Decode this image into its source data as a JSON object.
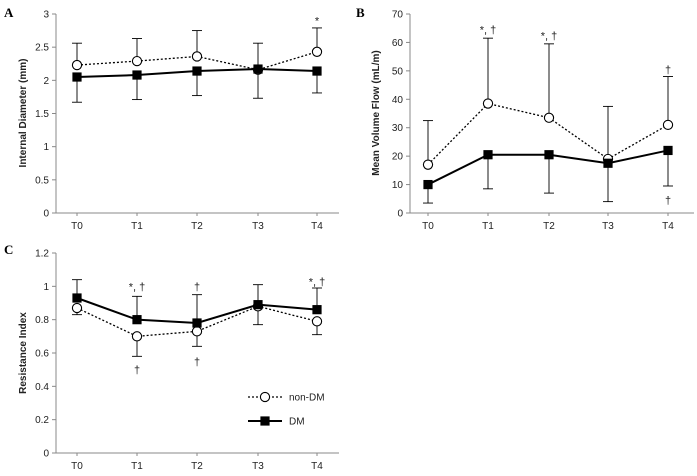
{
  "chart_data": [
    {
      "type": "line",
      "panel": "A",
      "ylabel": "Internal Diameter (mm)",
      "xlabel": "",
      "categories": [
        "T0",
        "T1",
        "T2",
        "T3",
        "T4"
      ],
      "ylim": [
        0,
        3
      ],
      "yticks": [
        0,
        0.5,
        1,
        1.5,
        2,
        2.5,
        3
      ],
      "ytick_labels": [
        "0",
        "0.5",
        "1",
        "1.5",
        "2",
        "2.5",
        "3"
      ],
      "series": [
        {
          "name": "non-DM",
          "style": "dotted-open-circle",
          "values": [
            2.23,
            2.29,
            2.36,
            2.16,
            2.43
          ],
          "err_low": [
            2.23,
            2.29,
            2.36,
            2.16,
            2.43
          ],
          "err_high": [
            2.56,
            2.63,
            2.75,
            2.56,
            2.79
          ]
        },
        {
          "name": "DM",
          "style": "solid-filled-square",
          "values": [
            2.05,
            2.08,
            2.14,
            2.17,
            2.14
          ],
          "err_low": [
            1.67,
            1.71,
            1.77,
            1.73,
            1.81
          ],
          "err_high": [
            2.05,
            2.08,
            2.14,
            2.17,
            2.14
          ]
        }
      ],
      "annotations": [
        {
          "text": "*",
          "category": "T4",
          "y": 2.9
        }
      ]
    },
    {
      "type": "line",
      "panel": "B",
      "ylabel": "Mean Volume Flow (mL/m)",
      "xlabel": "",
      "categories": [
        "T0",
        "T1",
        "T2",
        "T3",
        "T4"
      ],
      "ylim": [
        0,
        70
      ],
      "yticks": [
        0,
        10,
        20,
        30,
        40,
        50,
        60,
        70
      ],
      "ytick_labels": [
        "0",
        "10",
        "20",
        "30",
        "40",
        "50",
        "60",
        "70"
      ],
      "series": [
        {
          "name": "non-DM",
          "style": "dotted-open-circle",
          "values": [
            17,
            38.5,
            33.5,
            19,
            31
          ],
          "err_low": [
            17,
            38.5,
            33.5,
            19,
            31
          ],
          "err_high": [
            32.5,
            61.5,
            59.5,
            37.5,
            48
          ]
        },
        {
          "name": "DM",
          "style": "solid-filled-square",
          "values": [
            10,
            20.5,
            20.5,
            17.5,
            22
          ],
          "err_low": [
            3.5,
            8.5,
            7,
            4,
            9.5
          ],
          "err_high": [
            10,
            20.5,
            20.5,
            17.5,
            22
          ]
        }
      ],
      "annotations": [
        {
          "text": "*, †",
          "category": "T1",
          "y": 64.5
        },
        {
          "text": "*, †",
          "category": "T2",
          "y": 62.5
        },
        {
          "text": "†",
          "category": "T4",
          "y": 50.5
        },
        {
          "text": "†",
          "category": "T4",
          "y": 4.5
        }
      ]
    },
    {
      "type": "line",
      "panel": "C",
      "ylabel": "Resistance Index",
      "xlabel": "",
      "categories": [
        "T0",
        "T1",
        "T2",
        "T3",
        "T4"
      ],
      "ylim": [
        0,
        1.2
      ],
      "yticks": [
        0,
        0.2,
        0.4,
        0.6,
        0.8,
        1,
        1.2
      ],
      "ytick_labels": [
        "0",
        "0.2",
        "0.4",
        "0.6",
        "0.8",
        "1",
        "1.2"
      ],
      "series": [
        {
          "name": "non-DM",
          "style": "dotted-open-circle",
          "values": [
            0.87,
            0.7,
            0.73,
            0.88,
            0.79
          ],
          "err_low": [
            0.83,
            0.58,
            0.64,
            0.77,
            0.71
          ],
          "err_high": [
            0.87,
            0.7,
            0.73,
            0.88,
            0.79
          ]
        },
        {
          "name": "DM",
          "style": "solid-filled-square",
          "values": [
            0.93,
            0.8,
            0.78,
            0.89,
            0.86
          ],
          "err_low": [
            0.93,
            0.8,
            0.78,
            0.89,
            0.86
          ],
          "err_high": [
            1.04,
            0.94,
            0.95,
            1.01,
            0.99
          ]
        }
      ],
      "annotations": [
        {
          "text": "*, †",
          "category": "T1",
          "y": 1.0
        },
        {
          "text": "†",
          "category": "T1",
          "y": 0.5
        },
        {
          "text": "†",
          "category": "T2",
          "y": 1.0
        },
        {
          "text": "†",
          "category": "T2",
          "y": 0.55
        },
        {
          "text": "*, †",
          "category": "T4",
          "y": 1.03
        }
      ],
      "legend": {
        "position": "bottom-right",
        "entries": [
          {
            "label": "non-DM",
            "style": "dotted-open-circle"
          },
          {
            "label": "DM",
            "style": "solid-filled-square"
          }
        ]
      }
    }
  ]
}
